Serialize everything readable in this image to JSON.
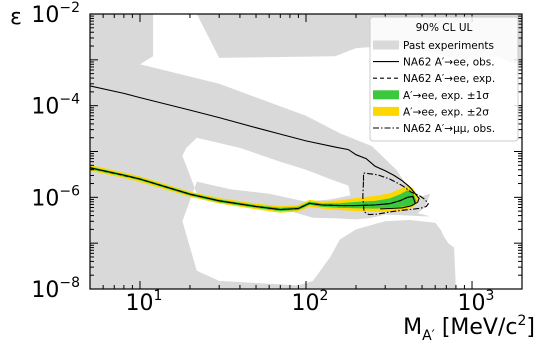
{
  "chart_data": {
    "type": "line",
    "title": "",
    "xlabel": "M_{A'} [MeV/c^2]",
    "ylabel": "ε",
    "x_scale": "log",
    "y_scale": "log",
    "xlim": [
      5,
      2000
    ],
    "ylim": [
      1e-08,
      0.01
    ],
    "grid": false,
    "legend_position": "top-right",
    "legend_title": "90% CL UL",
    "x_ticks": [
      {
        "value": 10,
        "base": "10",
        "exp": "1"
      },
      {
        "value": 100,
        "base": "10",
        "exp": "2"
      },
      {
        "value": 1000,
        "base": "10",
        "exp": "3"
      }
    ],
    "y_ticks": [
      {
        "value": 1e-08,
        "base": "10",
        "exp": "−8"
      },
      {
        "value": 1e-06,
        "base": "10",
        "exp": "−6"
      },
      {
        "value": 0.0001,
        "base": "10",
        "exp": "−4"
      },
      {
        "value": 0.01,
        "base": "10",
        "exp": "−2"
      }
    ],
    "legend": [
      {
        "label": "Past experiments",
        "style": "patch",
        "color": "#d9d9d9"
      },
      {
        "label": "NA62 A′→ee, obs.",
        "style": "solid",
        "color": "#000000"
      },
      {
        "label": "NA62 A′→ee, exp.",
        "style": "dashed",
        "color": "#000000"
      },
      {
        "label": "A′→ee, exp. ±1σ",
        "style": "patch",
        "color": "#3cc83c"
      },
      {
        "label": "A′→ee, exp. ±2σ",
        "style": "patch",
        "color": "#ffd700"
      },
      {
        "label": "NA62 A′→μμ, obs.",
        "style": "dashdot",
        "color": "#000000"
      }
    ],
    "series": [
      {
        "name": "Past experiments",
        "kind": "exclusion-region",
        "color": "#d9d9d9",
        "region": [
          [
            5,
            1e-08
          ],
          [
            5,
            0.01
          ],
          [
            2000,
            0.01
          ],
          [
            2000,
            0.0007
          ],
          [
            1400,
            0.0012
          ],
          [
            1000,
            0.001
          ],
          [
            700,
            0.0012
          ],
          [
            450,
            0.0018
          ],
          [
            300,
            0.002
          ],
          [
            200,
            0.0018
          ],
          [
            150,
            0.0012
          ],
          [
            30,
            0.0011
          ],
          [
            22,
            0.01
          ],
          [
            12,
            0.01
          ],
          [
            12,
            0.0012
          ],
          [
            10,
            0.0008
          ],
          [
            30,
            0.0003
          ],
          [
            100,
            6e-05
          ],
          [
            160,
            2.5e-05
          ],
          [
            250,
            1.3e-05
          ],
          [
            350,
            4e-06
          ],
          [
            420,
            1.5e-06
          ],
          [
            480,
            1e-06
          ],
          [
            560,
            1.2e-06
          ],
          [
            520,
            6e-07
          ],
          [
            470,
            4.5e-07
          ],
          [
            540,
            4e-07
          ],
          [
            620,
            3e-07
          ],
          [
            670,
            1.5e-07
          ],
          [
            720,
            1e-07
          ],
          [
            780,
            8e-08
          ],
          [
            800,
            1e-08
          ]
        ],
        "gap": [
          [
            22,
            2e-05
          ],
          [
            40,
            1.2e-05
          ],
          [
            70,
            6e-06
          ],
          [
            100,
            4e-06
          ],
          [
            140,
            2.5e-06
          ],
          [
            180,
            1.8e-06
          ],
          [
            185,
            1.1e-06
          ],
          [
            140,
            9e-07
          ],
          [
            100,
            8e-07
          ],
          [
            60,
            1.2e-06
          ],
          [
            35,
            1.5e-06
          ],
          [
            22,
            2.2e-06
          ],
          [
            18,
            3e-07
          ],
          [
            22,
            2.5e-08
          ],
          [
            30,
            1.5e-08
          ],
          [
            90,
            1.2e-08
          ],
          [
            110,
            1.5e-08
          ],
          [
            140,
            5e-08
          ],
          [
            160,
            1.2e-07
          ],
          [
            200,
            2e-07
          ],
          [
            250,
            2.5e-07
          ],
          [
            300,
            3e-07
          ],
          [
            420,
            3.2e-07
          ],
          [
            600,
            2.8e-07
          ],
          [
            660,
            1.8e-07
          ],
          [
            700,
            1.4e-07
          ],
          [
            740,
            1.6e-07
          ],
          [
            700,
            2.2e-07
          ],
          [
            560,
            3.8e-07
          ],
          [
            420,
            4e-07
          ],
          [
            300,
            4.2e-07
          ],
          [
            240,
            3.5e-07
          ],
          [
            200,
            3.3e-07
          ],
          [
            150,
            3.5e-07
          ],
          [
            110,
            3.6e-07
          ],
          [
            80,
            5e-07
          ],
          [
            60,
            6e-07
          ],
          [
            40,
            7e-07
          ],
          [
            28,
            8e-07
          ],
          [
            22,
            1.2e-06
          ],
          [
            20,
            3e-06
          ],
          [
            18,
            8e-06
          ],
          [
            19,
            1.2e-05
          ]
        ]
      },
      {
        "name": "A′→ee, exp. ±2σ",
        "kind": "band",
        "color": "#ffd700",
        "upper": [
          [
            5,
            5e-06
          ],
          [
            8,
            3.4e-06
          ],
          [
            10,
            2.8e-06
          ],
          [
            20,
            1.3e-06
          ],
          [
            30,
            9.5e-07
          ],
          [
            50,
            7.2e-07
          ],
          [
            70,
            6.3e-07
          ],
          [
            90,
            6.6e-07
          ],
          [
            105,
            8.6e-07
          ],
          [
            125,
            8e-07
          ],
          [
            160,
            8.5e-07
          ],
          [
            200,
            9.5e-07
          ],
          [
            260,
            1.05e-06
          ],
          [
            320,
            1.2e-06
          ],
          [
            370,
            1.5e-06
          ],
          [
            410,
            1.75e-06
          ],
          [
            440,
            1.55e-06
          ],
          [
            480,
            9e-07
          ],
          [
            470,
            8e-07
          ]
        ],
        "lower": [
          [
            5,
            3.9e-06
          ],
          [
            8,
            2.7e-06
          ],
          [
            10,
            2.2e-06
          ],
          [
            20,
            1.05e-06
          ],
          [
            30,
            7.5e-07
          ],
          [
            50,
            5.6e-07
          ],
          [
            70,
            4.7e-07
          ],
          [
            90,
            5e-07
          ],
          [
            105,
            6.4e-07
          ],
          [
            125,
            5.8e-07
          ],
          [
            160,
            5.4e-07
          ],
          [
            200,
            5.1e-07
          ],
          [
            260,
            4.9e-07
          ],
          [
            320,
            5e-07
          ],
          [
            370,
            5.2e-07
          ],
          [
            410,
            5.6e-07
          ],
          [
            440,
            6.2e-07
          ],
          [
            470,
            8e-07
          ]
        ]
      },
      {
        "name": "A′→ee, exp. ±1σ",
        "kind": "band",
        "color": "#3cc83c",
        "upper": [
          [
            5,
            4.6e-06
          ],
          [
            8,
            3.15e-06
          ],
          [
            10,
            2.6e-06
          ],
          [
            20,
            1.22e-06
          ],
          [
            30,
            8.8e-07
          ],
          [
            50,
            6.6e-07
          ],
          [
            70,
            5.8e-07
          ],
          [
            90,
            6.1e-07
          ],
          [
            105,
            7.9e-07
          ],
          [
            125,
            7.2e-07
          ],
          [
            160,
            7.3e-07
          ],
          [
            200,
            7.8e-07
          ],
          [
            260,
            8.2e-07
          ],
          [
            320,
            9.3e-07
          ],
          [
            370,
            1.15e-06
          ],
          [
            410,
            1.4e-06
          ],
          [
            440,
            1.25e-06
          ],
          [
            460,
            8.5e-07
          ],
          [
            455,
            7.5e-07
          ]
        ],
        "lower": [
          [
            5,
            4.2e-06
          ],
          [
            8,
            2.9e-06
          ],
          [
            10,
            2.4e-06
          ],
          [
            20,
            1.12e-06
          ],
          [
            30,
            8e-07
          ],
          [
            50,
            6e-07
          ],
          [
            70,
            5.1e-07
          ],
          [
            90,
            5.4e-07
          ],
          [
            105,
            7e-07
          ],
          [
            125,
            6.3e-07
          ],
          [
            160,
            6e-07
          ],
          [
            200,
            5.9e-07
          ],
          [
            260,
            5.8e-07
          ],
          [
            320,
            6e-07
          ],
          [
            370,
            6.3e-07
          ],
          [
            410,
            6.6e-07
          ],
          [
            440,
            7e-07
          ],
          [
            455,
            7.5e-07
          ]
        ]
      },
      {
        "name": "NA62 A′→ee, exp.",
        "kind": "dashed",
        "color": "#000000",
        "points": [
          [
            5,
            4.4e-06
          ],
          [
            8,
            3e-06
          ],
          [
            10,
            2.5e-06
          ],
          [
            20,
            1.17e-06
          ],
          [
            30,
            8.4e-07
          ],
          [
            50,
            6.3e-07
          ],
          [
            70,
            5.4e-07
          ],
          [
            90,
            5.7e-07
          ],
          [
            105,
            7.4e-07
          ],
          [
            125,
            6.8e-07
          ],
          [
            160,
            6.6e-07
          ],
          [
            200,
            6.6e-07
          ],
          [
            260,
            6.8e-07
          ],
          [
            320,
            7.3e-07
          ],
          [
            370,
            8.5e-07
          ],
          [
            410,
            1e-06
          ],
          [
            440,
            1.05e-06
          ],
          [
            455,
            7.5e-07
          ]
        ]
      },
      {
        "name": "NA62 A′→ee, obs.",
        "kind": "solid",
        "color": "#000000",
        "segments": [
          [
            [
              5,
              4.4e-06
            ],
            [
              8,
              3.05e-06
            ],
            [
              10,
              2.5e-06
            ],
            [
              20,
              1.17e-06
            ],
            [
              30,
              8.4e-07
            ],
            [
              50,
              6.3e-07
            ],
            [
              70,
              5.4e-07
            ],
            [
              90,
              5.7e-07
            ],
            [
              105,
              7.4e-07
            ],
            [
              125,
              6.8e-07
            ],
            [
              160,
              6.6e-07
            ],
            [
              200,
              6.6e-07
            ],
            [
              260,
              6.8e-07
            ],
            [
              320,
              7.3e-07
            ],
            [
              370,
              8.5e-07
            ],
            [
              410,
              1e-06
            ],
            [
              440,
              1.05e-06
            ],
            [
              455,
              7.5e-07
            ]
          ],
          [
            [
              5,
              0.00027
            ],
            [
              8,
              0.000185
            ],
            [
              10,
              0.00015
            ],
            [
              20,
              8e-05
            ],
            [
              30,
              5.5e-05
            ],
            [
              50,
              3.3e-05
            ],
            [
              70,
              2.4e-05
            ],
            [
              100,
              1.7e-05
            ],
            [
              150,
              1.25e-05
            ],
            [
              180,
              1.1e-05
            ],
            [
              200,
              8.5e-06
            ],
            [
              230,
              7e-06
            ],
            [
              260,
              4.8e-06
            ],
            [
              300,
              3.8e-06
            ],
            [
              340,
              3e-06
            ],
            [
              380,
              2.3e-06
            ],
            [
              420,
              1.7e-06
            ],
            [
              460,
              1.15e-06
            ],
            [
              480,
              9.5e-07
            ],
            [
              470,
              7.8e-07
            ],
            [
              430,
              6.5e-07
            ],
            [
              380,
              5.9e-07
            ],
            [
              320,
              5.7e-07
            ],
            [
              280,
              5.6e-07
            ]
          ]
        ]
      },
      {
        "name": "NA62 A′→μμ, obs.",
        "kind": "dashdot",
        "color": "#000000",
        "points": [
          [
            222,
            2.3e-06
          ],
          [
            222,
            3.4e-06
          ],
          [
            270,
            3.1e-06
          ],
          [
            320,
            2.5e-06
          ],
          [
            380,
            1.8e-06
          ],
          [
            430,
            1.3e-06
          ],
          [
            480,
            1.1e-06
          ],
          [
            520,
            9e-07
          ],
          [
            545,
            7.2e-07
          ],
          [
            530,
            6.3e-07
          ],
          [
            490,
            5.8e-07
          ],
          [
            440,
            5.5e-07
          ],
          [
            380,
            5.2e-07
          ],
          [
            320,
            4.8e-07
          ],
          [
            270,
            4.3e-07
          ],
          [
            240,
            4.2e-07
          ],
          [
            224,
            4.8e-07
          ],
          [
            220,
            1e-06
          ],
          [
            222,
            2.3e-06
          ]
        ]
      }
    ]
  }
}
